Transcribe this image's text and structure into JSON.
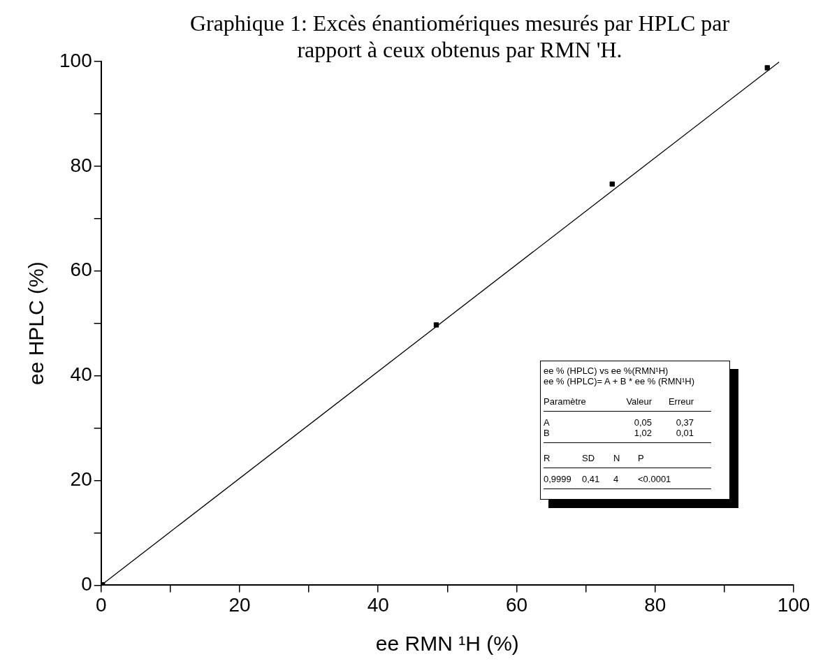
{
  "chart_data": {
    "type": "scatter",
    "title": "Graphique 1: Excès énantiomériques mesurés par HPLC par rapport à ceux obtenus par RMN 'H.",
    "xlabel": "ee RMN ¹H (%)",
    "ylabel": "ee HPLC (%)",
    "xlim": [
      0,
      100
    ],
    "ylim": [
      0,
      100
    ],
    "xticks": [
      0,
      {
        "value": 10,
        "label": null
      },
      20,
      {
        "value": 30,
        "label": null
      },
      40,
      {
        "value": 50,
        "label": null
      },
      60,
      {
        "value": 70,
        "label": null
      },
      80,
      {
        "value": 90,
        "label": null
      },
      100
    ],
    "yticks": [
      0,
      {
        "value": 10,
        "label": null
      },
      20,
      {
        "value": 30,
        "label": null
      },
      40,
      {
        "value": 50,
        "label": null
      },
      60,
      {
        "value": 70,
        "label": null
      },
      80,
      {
        "value": 90,
        "label": null
      },
      100
    ],
    "grid": false,
    "legend": false,
    "series": [
      {
        "color": "#000000",
        "marker": "square",
        "x": [
          0.2,
          48.4,
          73.8,
          96.2
        ],
        "values": [
          0.1,
          49.7,
          76.6,
          98.8
        ]
      },
      {
        "type": "line",
        "color": "#000000",
        "marker": "none",
        "x": [
          0,
          97.9
        ],
        "values": [
          0,
          99.9
        ]
      }
    ],
    "annotations": [
      "ee % (HPLC) vs ee %(RMN¹H)",
      "ee % (HPLC)= A + B * ee % (RMN¹H)",
      "Paramètre",
      "Valeur",
      "Erreur",
      "A",
      "0,05",
      "0,37",
      "B",
      "1,02",
      "0,01",
      "R",
      "SD",
      "N",
      "P",
      "0,9999",
      "0,41",
      "4",
      "<0.0001"
    ]
  }
}
